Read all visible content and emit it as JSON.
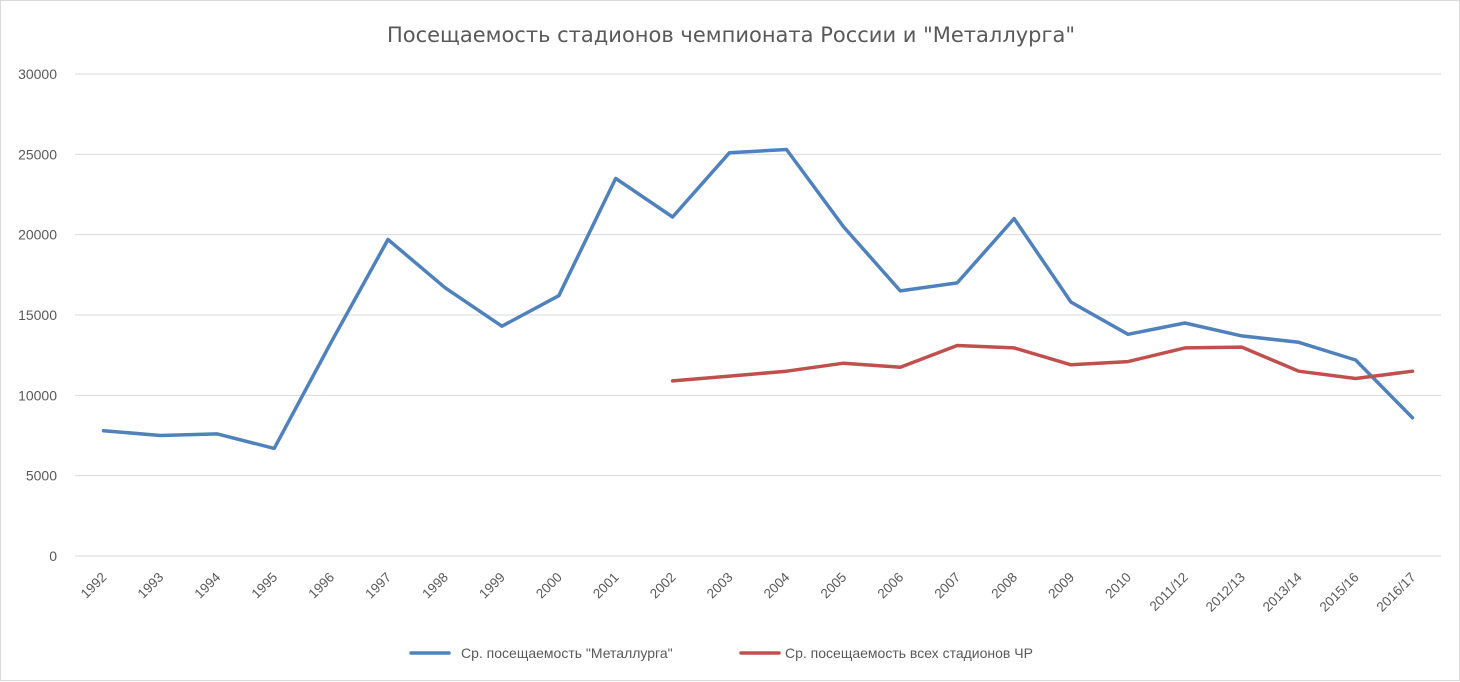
{
  "chart_data": {
    "type": "line",
    "title": "Посещаемость стадионов чемпионата России и \"Металлурга\"",
    "xlabel": "",
    "ylabel": "",
    "ylim": [
      0,
      30000
    ],
    "yticks": [
      "0",
      "5000",
      "10000",
      "15000",
      "20000",
      "25000",
      "30000"
    ],
    "grid": true,
    "legend_position": "bottom",
    "categories": [
      "1992",
      "1993",
      "1994",
      "1995",
      "1996",
      "1997",
      "1998",
      "1999",
      "2000",
      "2001",
      "2002",
      "2003",
      "2004",
      "2005",
      "2006",
      "2007",
      "2008",
      "2009",
      "2010",
      "2011/12",
      "2012/13",
      "2013/14",
      "2015/16",
      "2016/17"
    ],
    "series": [
      {
        "name": "Ср. посещаемость \"Металлурга\"",
        "color": "#4f81bd",
        "values": [
          7800,
          7500,
          7600,
          6700,
          13300,
          19700,
          16700,
          14300,
          16200,
          23500,
          21100,
          25100,
          25300,
          20500,
          16500,
          17000,
          21000,
          15800,
          13800,
          14500,
          13700,
          13300,
          12200,
          8600
        ]
      },
      {
        "name": "Ср. посещаемость всех стадионов ЧР",
        "color": "#c0504d",
        "values": [
          null,
          null,
          null,
          null,
          null,
          null,
          null,
          null,
          null,
          null,
          10900,
          11200,
          11500,
          12000,
          11750,
          13100,
          12950,
          11900,
          12100,
          12950,
          13000,
          11500,
          11050,
          11500
        ]
      }
    ]
  }
}
